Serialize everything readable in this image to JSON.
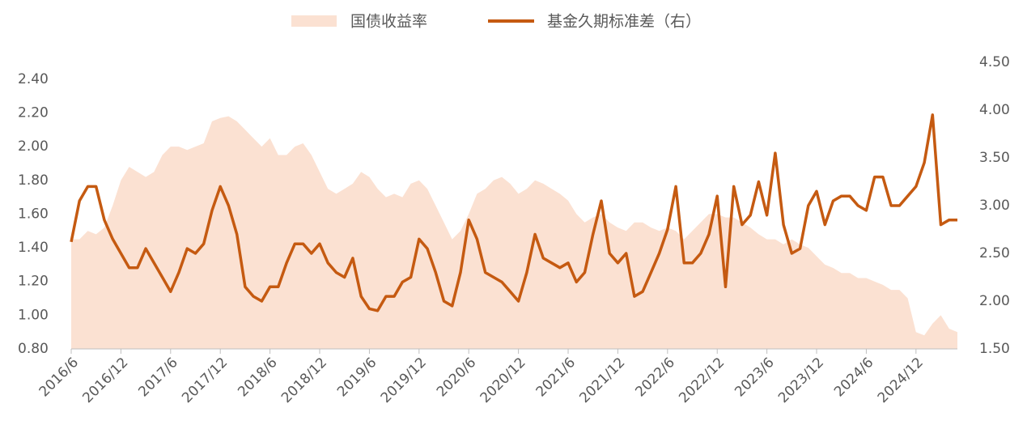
{
  "chart_data": {
    "type": "line",
    "legend": "top",
    "categories": [
      "2016/6",
      null,
      null,
      null,
      null,
      null,
      "2016/12",
      null,
      null,
      null,
      null,
      null,
      "2017/6",
      null,
      null,
      null,
      null,
      null,
      "2017/12",
      null,
      null,
      null,
      null,
      null,
      "2018/6",
      null,
      null,
      null,
      null,
      null,
      "2018/12",
      null,
      null,
      null,
      null,
      null,
      "2019/6",
      null,
      null,
      null,
      null,
      null,
      "2019/12",
      null,
      null,
      null,
      null,
      null,
      "2020/6",
      null,
      null,
      null,
      null,
      null,
      "2020/12",
      null,
      null,
      null,
      null,
      null,
      "2021/6",
      null,
      null,
      null,
      null,
      null,
      "2021/12",
      null,
      null,
      null,
      null,
      null,
      "2022/6",
      null,
      null,
      null,
      null,
      null,
      "2022/12",
      null,
      null,
      null,
      null,
      null,
      "2023/6",
      null,
      null,
      null,
      null,
      null,
      "2023/12",
      null,
      null,
      null,
      null,
      null,
      "2024/6",
      null,
      null,
      null,
      null,
      null,
      "2024/12",
      null,
      null,
      null,
      null,
      null
    ],
    "series": [
      {
        "name": "国债收益率",
        "type": "area",
        "color": "#fbe1d2",
        "values": [
          1.45,
          1.45,
          1.5,
          1.48,
          1.52,
          1.65,
          1.8,
          1.88,
          1.85,
          1.82,
          1.85,
          1.95,
          2.0,
          2.0,
          1.98,
          2.0,
          2.02,
          2.15,
          2.17,
          2.18,
          2.15,
          2.1,
          2.05,
          2.0,
          2.05,
          1.95,
          1.95,
          2.0,
          2.02,
          1.95,
          1.85,
          1.75,
          1.72,
          1.75,
          1.78,
          1.85,
          1.82,
          1.75,
          1.7,
          1.72,
          1.7,
          1.78,
          1.8,
          1.75,
          1.65,
          1.55,
          1.45,
          1.5,
          1.6,
          1.72,
          1.75,
          1.8,
          1.82,
          1.78,
          1.72,
          1.75,
          1.8,
          1.78,
          1.75,
          1.72,
          1.68,
          1.6,
          1.55,
          1.58,
          1.6,
          1.55,
          1.52,
          1.5,
          1.55,
          1.55,
          1.52,
          1.5,
          1.52,
          1.5,
          1.45,
          1.5,
          1.55,
          1.6,
          1.6,
          1.58,
          1.58,
          1.55,
          1.52,
          1.48,
          1.45,
          1.45,
          1.42,
          1.45,
          1.42,
          1.4,
          1.35,
          1.3,
          1.28,
          1.25,
          1.25,
          1.22,
          1.22,
          1.2,
          1.18,
          1.15,
          1.15,
          1.1,
          0.9,
          0.88,
          0.95,
          1.0,
          0.92,
          0.9
        ]
      },
      {
        "name": "基金久期标准差（右）",
        "type": "line",
        "axis": "y2",
        "color": "#c55a11",
        "values": [
          2.62,
          3.05,
          3.2,
          3.2,
          2.85,
          2.65,
          2.5,
          2.35,
          2.35,
          2.55,
          2.4,
          2.25,
          2.1,
          2.3,
          2.55,
          2.5,
          2.6,
          2.95,
          3.2,
          3.0,
          2.7,
          2.15,
          2.05,
          2.0,
          2.15,
          2.15,
          2.4,
          2.6,
          2.6,
          2.5,
          2.6,
          2.4,
          2.3,
          2.25,
          2.45,
          2.05,
          1.92,
          1.9,
          2.05,
          2.05,
          2.2,
          2.25,
          2.65,
          2.55,
          2.3,
          2.0,
          1.95,
          2.3,
          2.85,
          2.65,
          2.3,
          2.25,
          2.2,
          2.1,
          2.0,
          2.3,
          2.7,
          2.45,
          2.4,
          2.35,
          2.4,
          2.2,
          2.3,
          2.7,
          3.05,
          2.5,
          2.4,
          2.5,
          2.05,
          2.1,
          2.3,
          2.5,
          2.75,
          3.2,
          2.4,
          2.4,
          2.5,
          2.7,
          3.1,
          2.15,
          3.2,
          2.8,
          2.9,
          3.25,
          2.9,
          3.55,
          2.8,
          2.5,
          2.55,
          3.0,
          3.15,
          2.8,
          3.05,
          3.1,
          3.1,
          3.0,
          2.95,
          3.3,
          3.3,
          3.0,
          3.0,
          3.1,
          3.2,
          3.45,
          3.95,
          2.8,
          2.85,
          2.85
        ]
      }
    ],
    "ylim": [
      0.8,
      2.5
    ],
    "yticks": [
      {
        "value": 0.8,
        "label": "0.80"
      },
      {
        "value": 1.0,
        "label": "1.00"
      },
      {
        "value": 1.2,
        "label": "1.20"
      },
      {
        "value": 1.4,
        "label": "1.40"
      },
      {
        "value": 1.6,
        "label": "1.60"
      },
      {
        "value": 1.8,
        "label": "1.80"
      },
      {
        "value": 2.0,
        "label": "2.00"
      },
      {
        "value": 2.2,
        "label": "2.20"
      },
      {
        "value": 2.4,
        "label": "2.40"
      }
    ],
    "y2lim": [
      1.5,
      4.5
    ],
    "y2ticks": [
      {
        "value": 1.5,
        "label": "1.50"
      },
      {
        "value": 2.0,
        "label": "2.00"
      },
      {
        "value": 2.5,
        "label": "2.50"
      },
      {
        "value": 3.0,
        "label": "3.00"
      },
      {
        "value": 3.5,
        "label": "3.50"
      },
      {
        "value": 4.0,
        "label": "4.00"
      },
      {
        "value": 4.5,
        "label": "4.50"
      }
    ],
    "grid": false
  }
}
